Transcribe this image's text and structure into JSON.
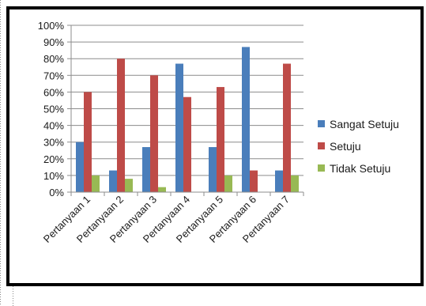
{
  "chart_data": {
    "type": "bar",
    "title": "",
    "xlabel": "",
    "ylabel": "",
    "categories": [
      "Pertanyaan 1",
      "Pertanyaan 2",
      "Pertanyaan 3",
      "Pertanyaan 4",
      "Pertanyaan 5",
      "Pertanyaan 6",
      "Pertanyaan 7"
    ],
    "series": [
      {
        "name": "Sangat Setuju",
        "color": "#4a7ebb",
        "values": [
          30,
          13,
          27,
          77,
          27,
          87,
          13
        ]
      },
      {
        "name": "Setuju",
        "color": "#be4b48",
        "values": [
          60,
          80,
          70,
          57,
          63,
          13,
          77
        ]
      },
      {
        "name": "Tidak Setuju",
        "color": "#98b954",
        "values": [
          10,
          8,
          3,
          0,
          10,
          0,
          10
        ]
      }
    ],
    "ylim": [
      0,
      100
    ],
    "yticks": [
      "0%",
      "10%",
      "20%",
      "30%",
      "40%",
      "50%",
      "60%",
      "70%",
      "80%",
      "90%",
      "100%"
    ],
    "grid": true,
    "legend_position": "right"
  }
}
